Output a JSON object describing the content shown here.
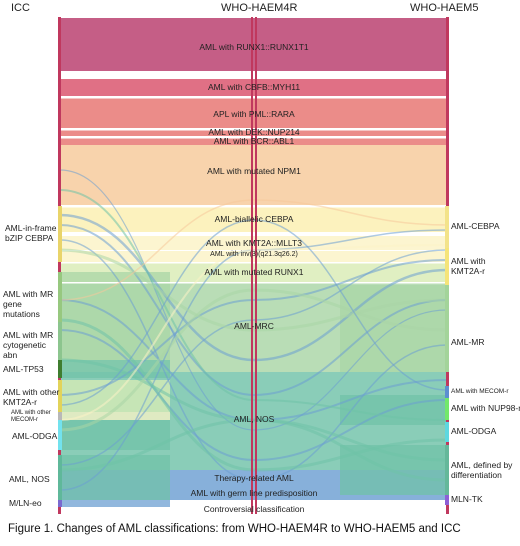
{
  "headers": {
    "icc": "ICC",
    "who4": "WHO-HAEM4R",
    "who5": "WHO-HAEM5"
  },
  "middle_labels": [
    "AML with RUNX1::RUNX1T1",
    "AML with CBFB::MYH11",
    "APL with PML::RARA",
    "AML with DEK::NUP214",
    "AML with BCR::ABL1",
    "AML with mutated NPM1",
    "AML-biallelic CEBPA",
    "AML with KMT2A::MLLT3",
    "AML with inv(3)(q21.3q26.2)",
    "AML with mutated RUNX1",
    "AML-MRC",
    "AML, NOS",
    "Therapy-related AML",
    "AML with germ line predisposition",
    "Controversial classification"
  ],
  "left_labels": [
    "AML-in-frame bZIP CEBPA",
    "AML with MR gene mutations",
    "AML with MR cytogenetic abn",
    "AML-TP53",
    "AML with other KMT2A-r",
    "AML with other MECOM-r",
    "AML-ODGA",
    "AML, NOS",
    "M/LN-eo"
  ],
  "right_labels": [
    "AML-CEBPA",
    "AML with KMT2A-r",
    "AML-MR",
    "AML with MECOM-r",
    "AML with NUP98-r",
    "AML-ODGA",
    "AML, defined by differentiation",
    "MLN-TK"
  ],
  "caption": "Figure 1. Changes of AML classifications: from WHO-HAEM4R to WHO-HAEM5 and ICC",
  "colors": {
    "runx1": "#b83a6b",
    "cbfb": "#d9506a",
    "pml": "#e7736f",
    "npm1": "#f6c99a",
    "cebpa": "#fbefb0",
    "kmt2a": "#fbf3c6",
    "runx1mut": "#d9ecb5",
    "mrc": "#a9d6a6",
    "nos": "#70c2a8",
    "tmn": "#6c9fd2",
    "marker": "#c0385e"
  }
}
